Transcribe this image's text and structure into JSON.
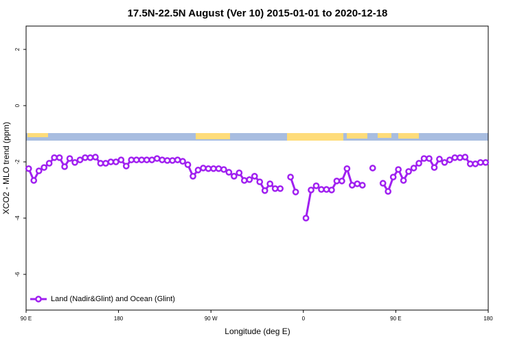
{
  "chart_data": {
    "type": "line",
    "title": "17.5N-22.5N August (Ver 10)   2015-01-01 to 2020-12-18",
    "x_label": "Longitude (deg E)",
    "y_label": "XCO2 - MLO trend (ppm)",
    "xlim": [
      90,
      540
    ],
    "ylim": [
      -7.27,
      2.83
    ],
    "xticks": [
      {
        "value": 90,
        "label": "90 E"
      },
      180,
      {
        "value": 270,
        "label": "90 W"
      },
      {
        "value": 360,
        "label": "0"
      },
      {
        "value": 450,
        "label": "90 E"
      },
      {
        "value": 540,
        "label": "180"
      }
    ],
    "yticks": [
      2,
      0,
      -2,
      -4,
      -6
    ],
    "legend": "bottom-left",
    "x": [
      92.5,
      97.5,
      102.5,
      107.5,
      112.5,
      117.5,
      122.5,
      127.5,
      132.5,
      137.5,
      142.5,
      147.5,
      152.5,
      157.5,
      162.5,
      167.5,
      172.5,
      177.5,
      182.5,
      187.5,
      192.5,
      197.5,
      202.5,
      207.5,
      212.5,
      217.5,
      222.5,
      227.5,
      232.5,
      237.5,
      242.5,
      247.5,
      252.5,
      257.5,
      262.5,
      267.5,
      272.5,
      277.5,
      282.5,
      287.5,
      292.5,
      297.5,
      302.5,
      307.5,
      312.5,
      317.5,
      322.5,
      327.5,
      332.5,
      337.5,
      342.5,
      347.5,
      352.5,
      357.5,
      362.5,
      367.5,
      372.5,
      377.5,
      382.5,
      387.5,
      392.5,
      397.5,
      402.5,
      407.5,
      412.5,
      417.5,
      422.5,
      427.5,
      432.5,
      437.5,
      442.5,
      447.5,
      452.5,
      457.5,
      462.5,
      467.5,
      472.5,
      477.5,
      482.5,
      487.5,
      492.5,
      497.5,
      502.5,
      507.5,
      512.5,
      517.5,
      522.5,
      527.5,
      532.5,
      537.5
    ],
    "series": [
      {
        "name": "Land (Nadir&Glint) and Ocean (Glint)",
        "color": "#a020f0",
        "values": [
          -2.24,
          -2.66,
          -2.32,
          -2.2,
          -2.05,
          -1.85,
          -1.85,
          -2.17,
          -1.88,
          -2.02,
          -1.93,
          -1.85,
          -1.85,
          -1.83,
          -2.05,
          -2.05,
          -2.0,
          -2.0,
          -1.93,
          -2.15,
          -1.93,
          -1.93,
          -1.93,
          -1.93,
          -1.93,
          -1.88,
          -1.93,
          -1.95,
          -1.95,
          -1.93,
          -1.98,
          -2.1,
          -2.51,
          -2.29,
          -2.22,
          -2.24,
          -2.24,
          -2.24,
          -2.27,
          -2.37,
          -2.51,
          -2.39,
          -2.66,
          -2.63,
          -2.51,
          -2.71,
          -3.02,
          -2.78,
          -2.95,
          -2.95,
          null,
          -2.54,
          -3.07,
          null,
          -4.0,
          -3.0,
          -2.85,
          -2.98,
          -2.98,
          -3.0,
          -2.68,
          -2.68,
          -2.24,
          -2.83,
          -2.78,
          -2.83,
          null,
          -2.22,
          null,
          -2.76,
          -3.05,
          -2.54,
          -2.27,
          -2.66,
          -2.34,
          -2.22,
          -2.05,
          -1.88,
          -1.88,
          -2.2,
          -1.9,
          -2.02,
          -1.93,
          -1.85,
          -1.85,
          -1.83,
          -2.07,
          -2.07,
          -2.02,
          -2.02
        ]
      }
    ]
  }
}
